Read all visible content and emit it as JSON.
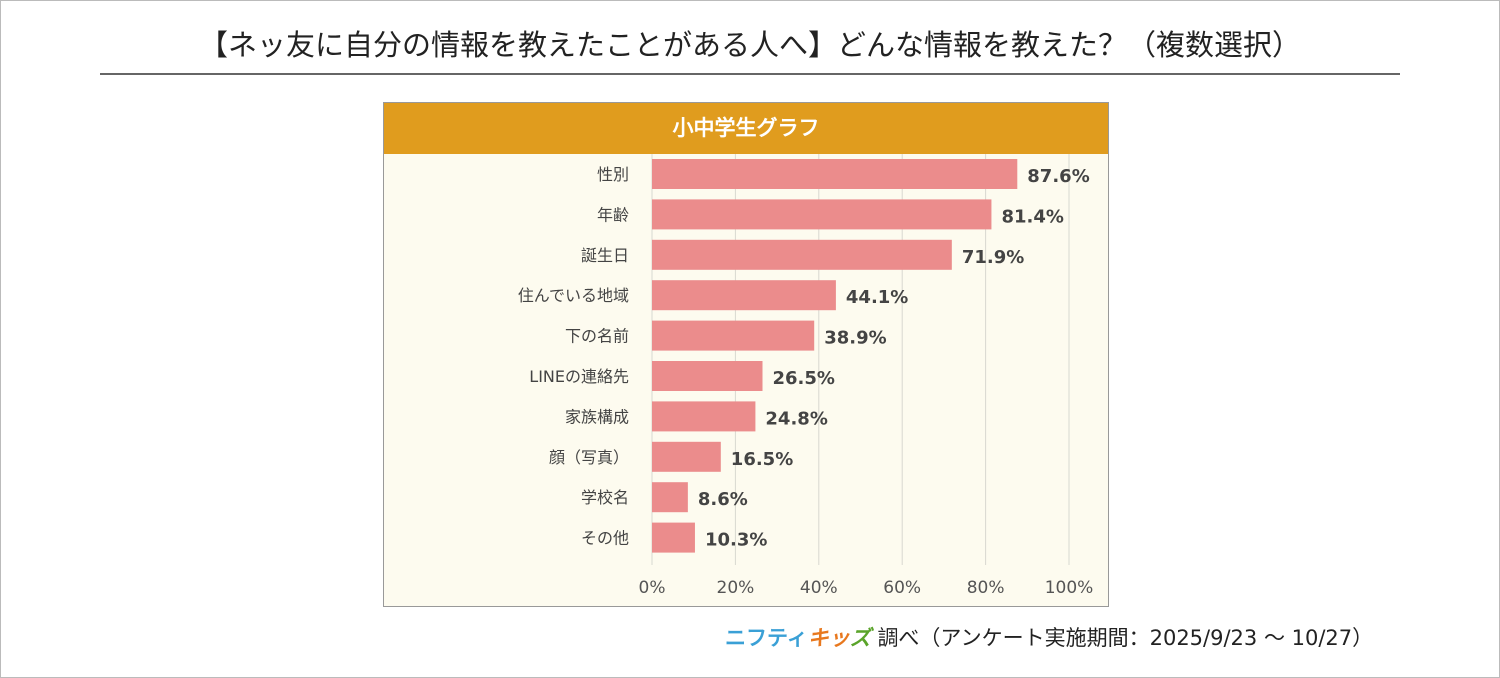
{
  "title": "【ネッ友に自分の情報を教えたことがある人へ】どんな情報を教えた？（複数選択）",
  "chart_data": {
    "type": "bar",
    "title": "小中学生グラフ",
    "categories": [
      "性別",
      "年齢",
      "誕生日",
      "住んでいる地域",
      "下の名前",
      "LINEの連絡先",
      "家族構成",
      "顔（写真）",
      "学校名",
      "その他"
    ],
    "values": [
      87.6,
      81.4,
      71.9,
      44.1,
      38.9,
      26.5,
      24.8,
      16.5,
      8.6,
      10.3
    ],
    "value_labels": [
      "87.6%",
      "81.4%",
      "71.9%",
      "44.1%",
      "38.9%",
      "26.5%",
      "24.8%",
      "16.5%",
      "8.6%",
      "10.3%"
    ],
    "xlim": [
      0,
      100
    ],
    "xticks": [
      "0%",
      "20%",
      "40%",
      "60%",
      "80%",
      "100%"
    ],
    "grid": true,
    "bar_color": "#eb8c8c",
    "header_color": "#e09c1e"
  },
  "footer": {
    "logo_part1": "ニフティ",
    "logo_part2": "キッ",
    "logo_part3": "ズ",
    "text": "調べ（アンケート実施期間：2025/9/23 ～ 10/27）"
  }
}
